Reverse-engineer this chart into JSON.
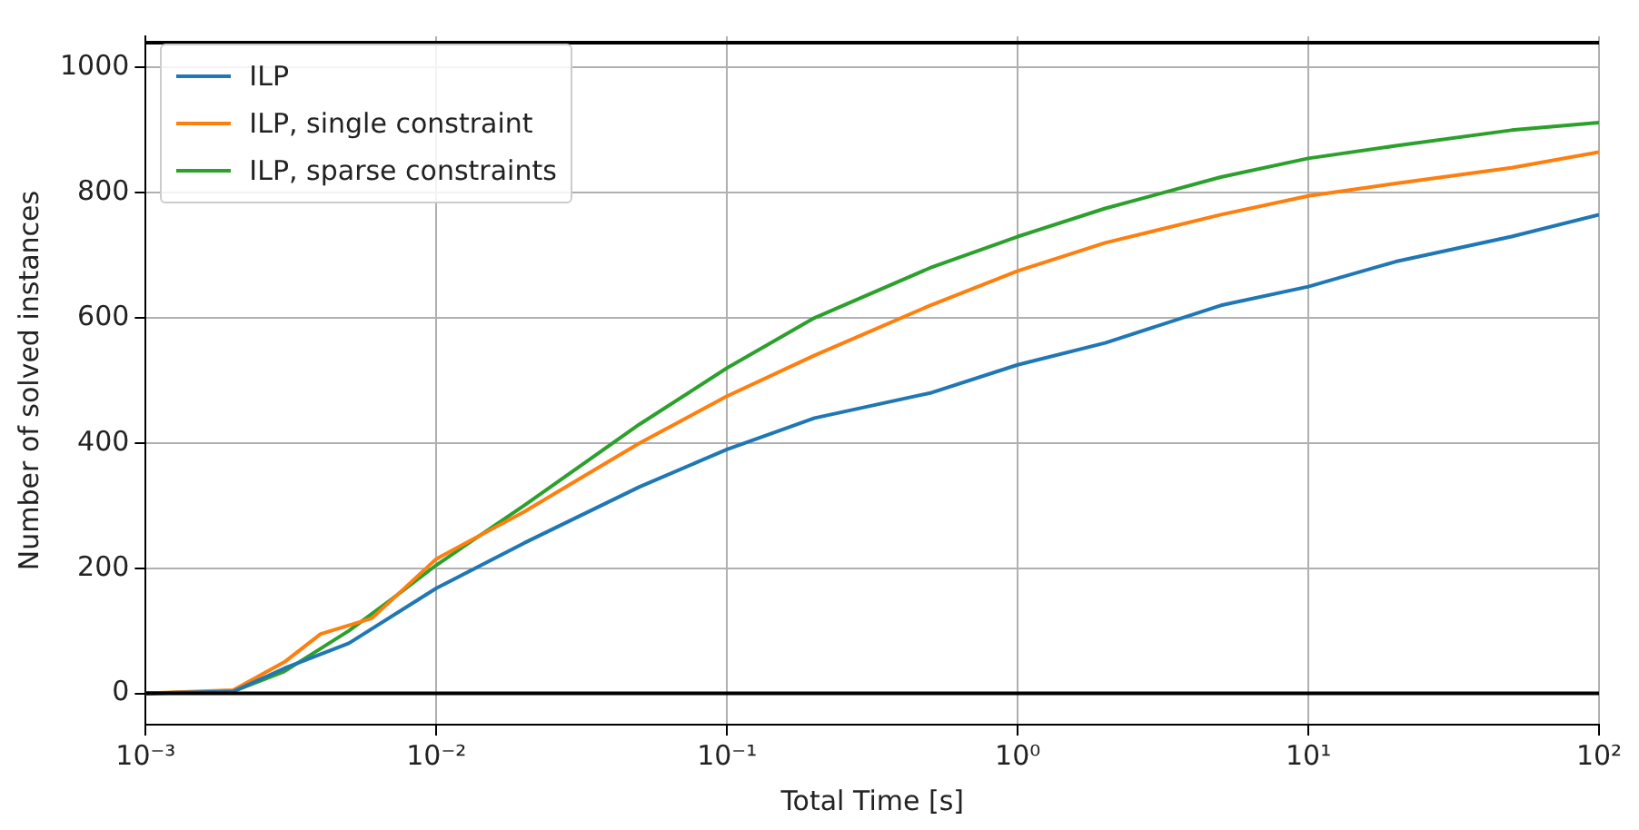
{
  "chart_data": {
    "type": "line",
    "xlabel": "Total Time [s]",
    "ylabel": "Number of solved instances",
    "log": "x",
    "xlim": [
      0.001,
      100
    ],
    "xticks": [
      {
        "value": 0.001,
        "label": "10⁻³"
      },
      {
        "value": 0.01,
        "label": "10⁻²"
      },
      {
        "value": 0.1,
        "label": "10⁻¹"
      },
      {
        "value": 1,
        "label": "10⁰"
      },
      {
        "value": 10,
        "label": "10¹"
      },
      {
        "value": 100,
        "label": "10²"
      }
    ],
    "ylim": [
      -50,
      1050
    ],
    "yticks": [
      0,
      200,
      400,
      600,
      800,
      1000
    ],
    "grid": true,
    "legend": "top left",
    "marker": "none",
    "line_style": "solid",
    "ref_lines": [
      {
        "axis": "y",
        "value": 0,
        "color": "#000000"
      },
      {
        "axis": "y",
        "value": 1040,
        "color": "#000000"
      }
    ],
    "series": [
      {
        "name": "ILP",
        "color": "#1f77b4",
        "x": [
          0.001,
          0.002,
          0.003,
          0.005,
          0.01,
          0.02,
          0.05,
          0.1,
          0.2,
          0.5,
          1,
          2,
          5,
          10,
          20,
          50,
          100
        ],
        "values": [
          0,
          3,
          40,
          80,
          168,
          240,
          330,
          390,
          440,
          480,
          525,
          560,
          620,
          650,
          690,
          730,
          765
        ]
      },
      {
        "name": "ILP, single constraint",
        "color": "#ff7f0e",
        "x": [
          0.001,
          0.002,
          0.003,
          0.004,
          0.006,
          0.01,
          0.02,
          0.05,
          0.1,
          0.2,
          0.5,
          1,
          2,
          5,
          10,
          20,
          50,
          100
        ],
        "values": [
          0,
          5,
          50,
          95,
          120,
          215,
          290,
          400,
          475,
          540,
          620,
          675,
          720,
          765,
          795,
          815,
          840,
          865
        ]
      },
      {
        "name": "ILP, sparse constraints",
        "color": "#2ca02c",
        "x": [
          0.001,
          0.002,
          0.003,
          0.005,
          0.007,
          0.01,
          0.02,
          0.05,
          0.1,
          0.2,
          0.5,
          1,
          2,
          5,
          10,
          20,
          50,
          100
        ],
        "values": [
          0,
          3,
          35,
          100,
          150,
          205,
          300,
          430,
          520,
          600,
          680,
          730,
          775,
          825,
          855,
          875,
          900,
          912
        ]
      }
    ]
  }
}
